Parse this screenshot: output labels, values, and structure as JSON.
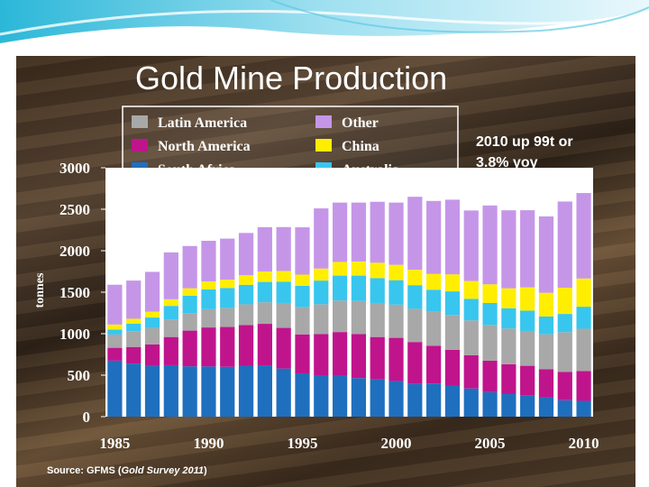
{
  "colors": {
    "south_africa": "#1f6fbf",
    "north_america": "#c0148c",
    "latin_america": "#a8a8a8",
    "australia": "#38c6ee",
    "china": "#ffee00",
    "other": "#c596e8"
  },
  "slide": {
    "source_prefix": "Source: GFMS (",
    "source_title": "Gold Survey 2011",
    "source_suffix": ")"
  },
  "annotation": {
    "line1": "2010 up 99t or",
    "line2": "3.8% yoy"
  },
  "chart_data": {
    "type": "bar",
    "stacked": true,
    "title": "Gold Mine Production",
    "ylabel": "tonnes",
    "xlabel": "",
    "ylim": [
      0,
      3000
    ],
    "yticks": [
      "0",
      "500",
      "1000",
      "1500",
      "2000",
      "2500",
      "3000"
    ],
    "xticks": [
      "1985",
      "1990",
      "1995",
      "2000",
      "2005",
      "2010"
    ],
    "categories": [
      "1985",
      "1986",
      "1987",
      "1988",
      "1989",
      "1990",
      "1991",
      "1992",
      "1993",
      "1994",
      "1995",
      "1996",
      "1997",
      "1998",
      "1999",
      "2000",
      "2001",
      "2002",
      "2003",
      "2004",
      "2005",
      "2006",
      "2007",
      "2008",
      "2009",
      "2010"
    ],
    "legend": [
      {
        "key": "latin_america",
        "label": "Latin America"
      },
      {
        "key": "other",
        "label": "Other"
      },
      {
        "key": "north_america",
        "label": "North America"
      },
      {
        "key": "china",
        "label": "China"
      },
      {
        "key": "south_africa",
        "label": "South Africa"
      },
      {
        "key": "australia",
        "label": "Australia"
      }
    ],
    "series": [
      {
        "key": "south_africa",
        "name": "South Africa",
        "values": [
          675,
          640,
          610,
          620,
          607,
          605,
          601,
          614,
          619,
          580,
          522,
          495,
          490,
          465,
          450,
          430,
          395,
          400,
          375,
          340,
          295,
          272,
          253,
          233,
          198,
          190
        ]
      },
      {
        "key": "north_america",
        "name": "North America",
        "values": [
          155,
          200,
          260,
          340,
          430,
          470,
          480,
          490,
          500,
          490,
          470,
          500,
          530,
          530,
          510,
          520,
          505,
          455,
          430,
          400,
          380,
          360,
          360,
          340,
          340,
          360
        ]
      },
      {
        "key": "latin_america",
        "name": "Latin America",
        "values": [
          160,
          190,
          200,
          210,
          210,
          220,
          230,
          250,
          260,
          300,
          330,
          360,
          380,
          400,
          410,
          400,
          400,
          410,
          420,
          420,
          430,
          430,
          420,
          420,
          480,
          510
        ]
      },
      {
        "key": "australia",
        "name": "Australia",
        "values": [
          60,
          90,
          125,
          165,
          210,
          240,
          240,
          235,
          245,
          255,
          255,
          285,
          300,
          305,
          300,
          295,
          285,
          265,
          285,
          260,
          265,
          245,
          245,
          215,
          220,
          265
        ]
      },
      {
        "key": "china",
        "name": "China",
        "values": [
          60,
          60,
          70,
          80,
          90,
          95,
          100,
          115,
          125,
          130,
          135,
          145,
          165,
          170,
          185,
          185,
          185,
          190,
          205,
          215,
          225,
          240,
          280,
          285,
          315,
          340
        ]
      },
      {
        "key": "other",
        "name": "Other",
        "values": [
          480,
          460,
          480,
          565,
          510,
          490,
          495,
          510,
          535,
          530,
          570,
          725,
          715,
          710,
          735,
          750,
          880,
          880,
          900,
          850,
          950,
          940,
          930,
          920,
          1040,
          1030
        ]
      }
    ]
  }
}
